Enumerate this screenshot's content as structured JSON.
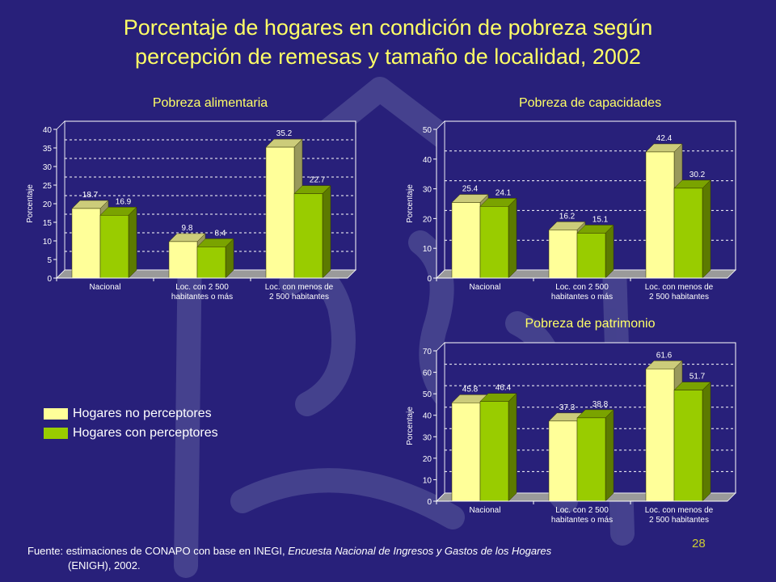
{
  "title_line1": "Porcentaje de hogares en condición de pobreza según",
  "title_line2": "percepción de remesas y tamaño de localidad, 2002",
  "colors": {
    "background": "#28207a",
    "title": "#ffff66",
    "series_no_perceptores": "#ffff99",
    "series_perceptores": "#99cc00",
    "plot_bg": "#28207a"
  },
  "legend": {
    "items": [
      {
        "label": "Hogares no perceptores",
        "color": "#ffff99"
      },
      {
        "label": "Hogares con perceptores",
        "color": "#99cc00"
      }
    ]
  },
  "source": {
    "prefix": "Fuente: estimaciones de CONAPO con base en INEGI, ",
    "italic": "Encuesta Nacional de Ingresos y Gastos de los Hogares",
    "suffix": "(ENIGH), 2002."
  },
  "page_number": "28",
  "chart_data": [
    {
      "type": "bar",
      "title": "Pobreza alimentaria",
      "ylabel": "Porcentaje",
      "ylim": [
        0,
        40
      ],
      "ytick_step": 5,
      "grid": true,
      "categories": [
        [
          "Nacional"
        ],
        [
          "Loc. con 2 500",
          "habitantes o más"
        ],
        [
          "Loc. con menos de",
          "2 500 habitantes"
        ]
      ],
      "series": [
        {
          "name": "Hogares no perceptores",
          "values": [
            18.7,
            9.8,
            35.2
          ]
        },
        {
          "name": "Hogares con perceptores",
          "values": [
            16.9,
            8.4,
            22.7
          ]
        }
      ]
    },
    {
      "type": "bar",
      "title": "Pobreza de capacidades",
      "ylabel": "Porcentaje",
      "ylim": [
        0,
        50
      ],
      "ytick_step": 10,
      "grid": true,
      "categories": [
        [
          "Nacional"
        ],
        [
          "Loc. con 2 500",
          "habitantes o más"
        ],
        [
          "Loc. con menos de",
          "2 500 habitantes"
        ]
      ],
      "series": [
        {
          "name": "Hogares no perceptores",
          "values": [
            25.4,
            16.2,
            42.4
          ]
        },
        {
          "name": "Hogares con perceptores",
          "values": [
            24.1,
            15.1,
            30.2
          ]
        }
      ]
    },
    {
      "type": "bar",
      "title": "Pobreza de patrimonio",
      "ylabel": "Porcentaje",
      "ylim": [
        0,
        70
      ],
      "ytick_step": 10,
      "grid": true,
      "categories": [
        [
          "Nacional"
        ],
        [
          "Loc. con 2 500",
          "habitantes o más"
        ],
        [
          "Loc. con menos de",
          "2 500 habitantes"
        ]
      ],
      "series": [
        {
          "name": "Hogares no perceptores",
          "values": [
            45.8,
            37.3,
            61.6
          ]
        },
        {
          "name": "Hogares con perceptores",
          "values": [
            46.4,
            38.8,
            51.7
          ]
        }
      ]
    }
  ]
}
